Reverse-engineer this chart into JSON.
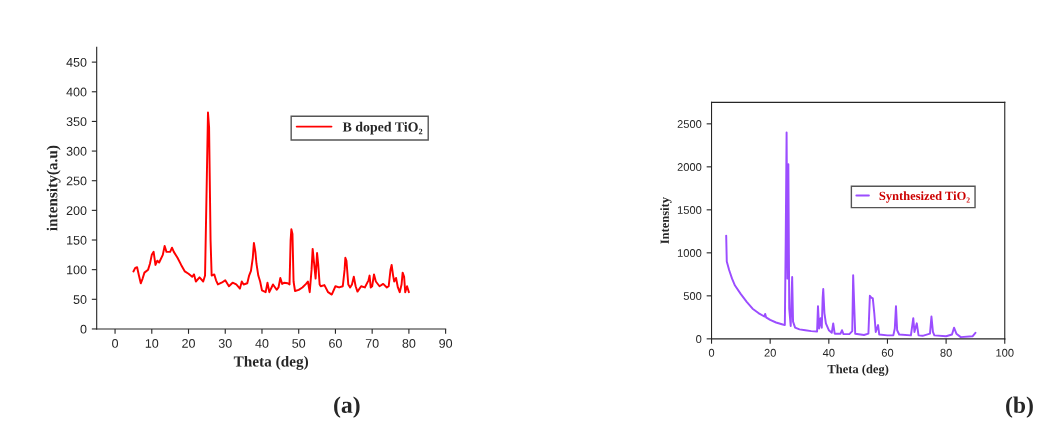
{
  "chart_data": [
    {
      "type": "line",
      "xlabel": "Theta (deg)",
      "ylabel": "intensity(a.u)",
      "xlim": [
        -5,
        90
      ],
      "xticks": [
        0,
        10,
        20,
        30,
        40,
        50,
        60,
        70,
        80,
        90
      ],
      "ylim": [
        0,
        475
      ],
      "yticks": [
        0,
        50,
        100,
        150,
        200,
        250,
        300,
        350,
        400,
        450
      ],
      "legend": "top right",
      "grid": false,
      "annotations": [
        "(a)"
      ],
      "series": [
        {
          "name": "B doped TiO₂",
          "color": "#ff0000",
          "x": [
            5,
            5.5,
            6,
            6.5,
            7,
            7.5,
            8,
            9,
            9.5,
            10,
            10.5,
            11,
            11.5,
            12,
            13,
            13.5,
            14,
            15,
            15.5,
            16,
            17,
            18,
            19,
            20,
            21,
            21.5,
            22,
            23,
            24,
            24.5,
            25,
            25.3,
            25.6,
            26,
            26.3,
            27,
            27.5,
            28,
            29,
            30,
            31,
            32,
            33,
            34,
            34.5,
            35,
            36,
            36.5,
            37,
            37.5,
            37.8,
            38.2,
            38.5,
            39,
            39.5,
            40,
            41,
            41.5,
            42,
            43,
            44,
            44.5,
            45,
            45.5,
            46,
            47,
            47.5,
            47.8,
            48,
            48.3,
            48.6,
            49,
            50,
            51,
            52,
            52.5,
            53,
            53.5,
            53.8,
            54.2,
            54.6,
            55,
            55.3,
            55.7,
            56,
            57,
            58,
            59,
            60,
            61,
            62,
            62.5,
            62.7,
            63,
            63.5,
            64,
            64.5,
            65,
            65.5,
            66,
            67,
            68,
            69,
            69.3,
            69.6,
            70,
            70.5,
            71,
            72,
            73,
            74,
            74.5,
            75,
            75.3,
            75.7,
            76,
            76.5,
            77,
            77.5,
            78,
            78.3,
            78.7,
            79,
            79.5,
            80
          ],
          "values": [
            97,
            103,
            104,
            90,
            77,
            85,
            95,
            100,
            110,
            125,
            130,
            108,
            115,
            112,
            125,
            140,
            130,
            130,
            137,
            130,
            120,
            108,
            97,
            93,
            88,
            92,
            80,
            87,
            80,
            90,
            260,
            365,
            340,
            150,
            90,
            92,
            82,
            75,
            78,
            82,
            72,
            78,
            75,
            68,
            80,
            75,
            77,
            90,
            98,
            120,
            145,
            130,
            110,
            90,
            80,
            65,
            62,
            78,
            62,
            75,
            66,
            70,
            86,
            76,
            78,
            77,
            75,
            150,
            168,
            160,
            80,
            64,
            66,
            70,
            76,
            80,
            62,
            100,
            135,
            110,
            85,
            128,
            110,
            75,
            72,
            74,
            62,
            58,
            72,
            70,
            72,
            100,
            120,
            115,
            75,
            70,
            75,
            88,
            72,
            63,
            72,
            70,
            82,
            90,
            70,
            72,
            92,
            80,
            72,
            76,
            70,
            72,
            100,
            108,
            90,
            80,
            86,
            70,
            62,
            75,
            95,
            88,
            62,
            72,
            62
          ]
        }
      ]
    },
    {
      "type": "line",
      "xlabel": "Theta (deg)",
      "ylabel": "Intensity",
      "xlim": [
        0,
        100
      ],
      "xticks": [
        0,
        20,
        40,
        60,
        80,
        100
      ],
      "ylim": [
        0,
        2750
      ],
      "yticks": [
        0,
        500,
        1000,
        1500,
        2000,
        2500
      ],
      "legend": "right",
      "grid": false,
      "annotations": [
        "(b)"
      ],
      "series": [
        {
          "name": "Synthesized TiO₂",
          "color": "#9b4dff",
          "x": [
            5,
            5.2,
            6,
            7,
            8,
            10,
            12,
            14,
            16,
            18,
            18.3,
            18.6,
            20,
            22,
            24,
            25,
            25.3,
            25.6,
            25.9,
            26.2,
            26.5,
            27,
            27.5,
            27.8,
            28.5,
            30,
            32,
            34,
            36,
            36.3,
            36.7,
            37.2,
            37.6,
            37.9,
            38.1,
            38.5,
            39,
            40,
            41,
            41.5,
            42,
            44,
            44.5,
            45,
            47,
            48,
            48.3,
            48.7,
            49,
            52,
            53.5,
            54,
            54.5,
            55,
            55.5,
            56,
            56.8,
            57.2,
            60,
            62,
            62.5,
            62.9,
            63.3,
            64,
            68,
            68.8,
            69.2,
            70,
            70.6,
            72,
            74.5,
            75,
            75.5,
            76,
            80,
            82,
            82.7,
            83.5,
            85,
            89,
            90
          ],
          "values": [
            1200,
            900,
            800,
            700,
            620,
            520,
            430,
            350,
            300,
            260,
            290,
            250,
            220,
            190,
            170,
            160,
            1130,
            2400,
            700,
            2030,
            350,
            150,
            720,
            200,
            130,
            110,
            100,
            90,
            85,
            380,
            120,
            240,
            130,
            480,
            580,
            300,
            180,
            100,
            70,
            180,
            60,
            60,
            100,
            55,
            55,
            90,
            740,
            350,
            60,
            45,
            60,
            500,
            480,
            470,
            300,
            80,
            160,
            50,
            40,
            40,
            120,
            380,
            100,
            50,
            40,
            240,
            80,
            180,
            40,
            35,
            60,
            260,
            80,
            40,
            30,
            50,
            130,
            60,
            20,
            30,
            70
          ]
        }
      ]
    }
  ]
}
